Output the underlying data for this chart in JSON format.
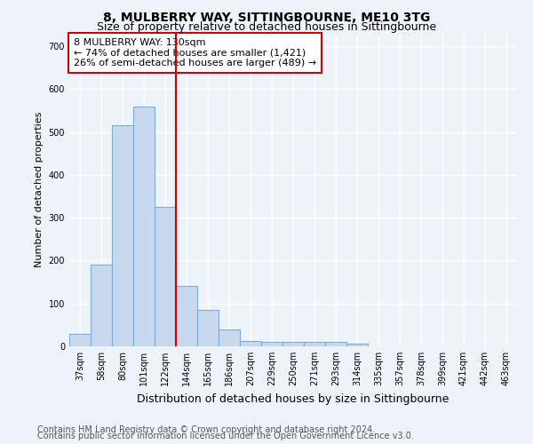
{
  "title": "8, MULBERRY WAY, SITTINGBOURNE, ME10 3TG",
  "subtitle": "Size of property relative to detached houses in Sittingbourne",
  "xlabel": "Distribution of detached houses by size in Sittingbourne",
  "ylabel": "Number of detached properties",
  "categories": [
    "37sqm",
    "58sqm",
    "80sqm",
    "101sqm",
    "122sqm",
    "144sqm",
    "165sqm",
    "186sqm",
    "207sqm",
    "229sqm",
    "250sqm",
    "271sqm",
    "293sqm",
    "314sqm",
    "335sqm",
    "357sqm",
    "378sqm",
    "399sqm",
    "421sqm",
    "442sqm",
    "463sqm"
  ],
  "values": [
    30,
    190,
    515,
    560,
    325,
    140,
    85,
    40,
    12,
    10,
    10,
    10,
    10,
    7,
    0,
    0,
    0,
    0,
    0,
    0,
    0
  ],
  "bar_color": "#c8d9ee",
  "bar_edge_color": "#7badd4",
  "vline_color": "#cc0000",
  "vline_pos": 4.5,
  "annotation_text": "8 MULBERRY WAY: 130sqm\n← 74% of detached houses are smaller (1,421)\n26% of semi-detached houses are larger (489) →",
  "annotation_box_color": "#ffffff",
  "annotation_box_edge_color": "#cc0000",
  "ylim": [
    0,
    730
  ],
  "yticks": [
    0,
    100,
    200,
    300,
    400,
    500,
    600,
    700
  ],
  "footer_line1": "Contains HM Land Registry data © Crown copyright and database right 2024.",
  "footer_line2": "Contains public sector information licensed under the Open Government Licence v3.0.",
  "bg_color": "#eef3fa",
  "plot_bg_color": "#eef3fa",
  "grid_color": "#ffffff",
  "title_fontsize": 10,
  "subtitle_fontsize": 9,
  "ylabel_fontsize": 8,
  "xlabel_fontsize": 9,
  "annotation_fontsize": 8,
  "tick_fontsize": 7,
  "footer_fontsize": 7
}
